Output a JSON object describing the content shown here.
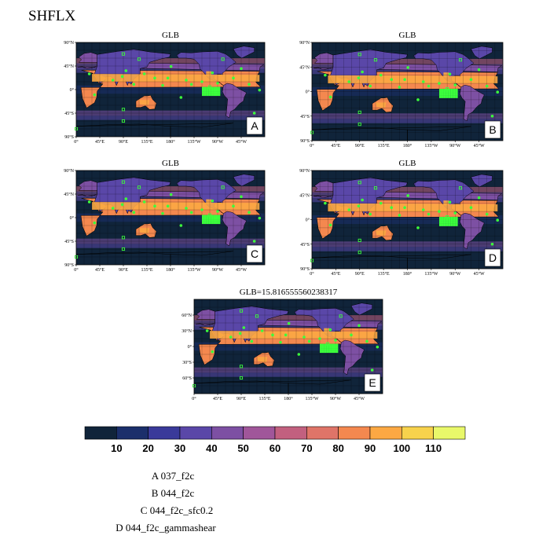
{
  "figure": {
    "title": "SHFLX"
  },
  "chart_data": {
    "type": "heatmap",
    "variable": "SHFLX",
    "projection": "cylindrical-equidistant",
    "panels": [
      {
        "label": "A",
        "title": "GLB"
      },
      {
        "label": "B",
        "title": "GLB"
      },
      {
        "label": "C",
        "title": "GLB"
      },
      {
        "label": "D",
        "title": "GLB"
      },
      {
        "label": "E",
        "title": "GLB=15.816555560238317"
      }
    ],
    "small_lat_ticks": [
      "90°N",
      "45°N",
      "0°",
      "45°S",
      "90°S"
    ],
    "large_lat_ticks": [
      "60°N",
      "30°N",
      "0°",
      "30°S",
      "60°S"
    ],
    "lon_ticks": [
      "0°",
      "45°E",
      "90°E",
      "135°E",
      "180°",
      "135°W",
      "90°W",
      "45°W"
    ],
    "colorbar": {
      "levels": [
        10,
        20,
        30,
        40,
        50,
        60,
        70,
        80,
        90,
        100,
        110
      ],
      "colors": [
        "#10243a",
        "#1b2f6b",
        "#3a3a9a",
        "#5a47a8",
        "#7d50a3",
        "#a0569a",
        "#c2607f",
        "#df7468",
        "#f4884f",
        "#fca843",
        "#f7d24c",
        "#e9f86a"
      ]
    },
    "legend": [
      {
        "key": "A",
        "name": "037_f2c"
      },
      {
        "key": "B",
        "name": "044_f2c"
      },
      {
        "key": "C",
        "name": "044_f2c_sfc0.2"
      },
      {
        "key": "D",
        "name": "044_f2c_gammashear"
      }
    ],
    "station_marker_color": "#3cff3c",
    "ocean_color": "#10243a",
    "land_warm_color": "#f4884f"
  }
}
